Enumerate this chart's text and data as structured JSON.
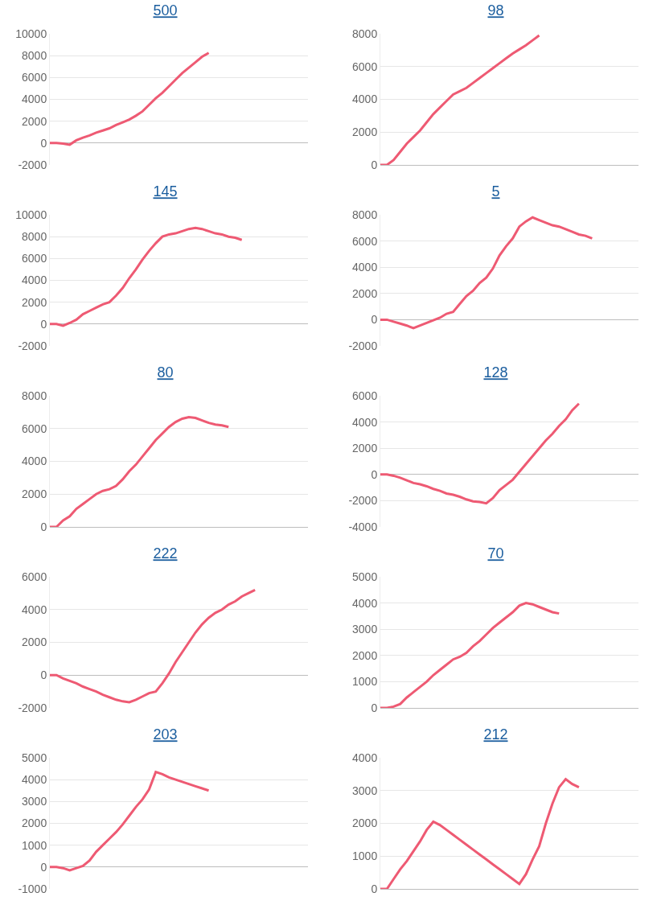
{
  "chart_data": [
    {
      "type": "line",
      "title": "500",
      "categories": [
        null,
        null,
        null,
        null,
        null,
        null,
        null,
        null,
        null,
        null,
        null,
        null,
        null,
        null,
        null,
        null,
        null,
        null,
        null,
        null,
        null,
        null,
        null,
        null,
        null,
        null,
        null,
        null,
        null,
        null,
        null,
        null,
        null,
        null,
        null,
        null,
        null,
        null,
        null,
        null
      ],
      "series": [
        {
          "color": "#ee5a73",
          "values": [
            0,
            0,
            -50,
            -150,
            250,
            500,
            700,
            950,
            1150,
            1350,
            1650,
            1900,
            2150,
            2500,
            2900,
            3500,
            4100,
            4600,
            5200,
            5800,
            6400,
            6900,
            7400,
            7900,
            8250,
            null,
            null,
            null,
            null,
            null,
            null,
            null,
            null,
            null,
            null,
            null,
            null,
            null,
            null,
            null
          ]
        }
      ],
      "ylim": [
        -2000,
        10000
      ],
      "yticks": [
        -2000,
        0,
        2000,
        4000,
        6000,
        8000,
        10000
      ],
      "grid": "y",
      "marker": "none",
      "line_style": "solid",
      "tick_labels": "y"
    },
    {
      "type": "line",
      "title": "98",
      "categories": [
        null,
        null,
        null,
        null,
        null,
        null,
        null,
        null,
        null,
        null,
        null,
        null,
        null,
        null,
        null,
        null,
        null,
        null,
        null,
        null,
        null,
        null,
        null,
        null,
        null,
        null,
        null,
        null,
        null,
        null,
        null,
        null,
        null,
        null,
        null,
        null,
        null,
        null,
        null,
        null
      ],
      "series": [
        {
          "color": "#ee5a73",
          "values": [
            0,
            0,
            300,
            800,
            1300,
            1700,
            2100,
            2600,
            3100,
            3500,
            3900,
            4300,
            4500,
            4700,
            5000,
            5300,
            5600,
            5900,
            6200,
            6500,
            6800,
            7050,
            7300,
            7600,
            7900,
            null,
            null,
            null,
            null,
            null,
            null,
            null,
            null,
            null,
            null,
            null,
            null,
            null,
            null,
            null
          ]
        }
      ],
      "ylim": [
        0,
        8000
      ],
      "yticks": [
        0,
        2000,
        4000,
        6000,
        8000
      ],
      "grid": "y",
      "marker": "none",
      "line_style": "solid",
      "tick_labels": "y"
    },
    {
      "type": "line",
      "title": "145",
      "categories": [
        null,
        null,
        null,
        null,
        null,
        null,
        null,
        null,
        null,
        null,
        null,
        null,
        null,
        null,
        null,
        null,
        null,
        null,
        null,
        null,
        null,
        null,
        null,
        null,
        null,
        null,
        null,
        null,
        null,
        null,
        null,
        null,
        null,
        null,
        null,
        null,
        null,
        null,
        null,
        null
      ],
      "series": [
        {
          "color": "#ee5a73",
          "values": [
            0,
            0,
            -150,
            100,
            400,
            900,
            1200,
            1500,
            1800,
            2000,
            2600,
            3300,
            4200,
            5000,
            5900,
            6700,
            7400,
            8000,
            8200,
            8300,
            8500,
            8700,
            8800,
            8700,
            8500,
            8300,
            8200,
            8000,
            7900,
            7700,
            null,
            null,
            null,
            null,
            null,
            null,
            null,
            null,
            null,
            null
          ]
        }
      ],
      "ylim": [
        -2000,
        10000
      ],
      "yticks": [
        -2000,
        0,
        2000,
        4000,
        6000,
        8000,
        10000
      ],
      "grid": "y",
      "marker": "none",
      "line_style": "solid",
      "tick_labels": "y"
    },
    {
      "type": "line",
      "title": "5",
      "categories": [
        null,
        null,
        null,
        null,
        null,
        null,
        null,
        null,
        null,
        null,
        null,
        null,
        null,
        null,
        null,
        null,
        null,
        null,
        null,
        null,
        null,
        null,
        null,
        null,
        null,
        null,
        null,
        null,
        null,
        null,
        null,
        null,
        null,
        null,
        null,
        null,
        null,
        null,
        null,
        null
      ],
      "series": [
        {
          "color": "#ee5a73",
          "values": [
            0,
            0,
            -150,
            -300,
            -450,
            -650,
            -450,
            -250,
            -50,
            150,
            450,
            600,
            1200,
            1800,
            2200,
            2800,
            3200,
            3900,
            4900,
            5600,
            6200,
            7100,
            7500,
            7800,
            7600,
            7400,
            7200,
            7100,
            6900,
            6700,
            6500,
            6400,
            6200,
            null,
            null,
            null,
            null,
            null,
            null,
            null
          ]
        }
      ],
      "ylim": [
        -2000,
        8000
      ],
      "yticks": [
        -2000,
        0,
        2000,
        4000,
        6000,
        8000
      ],
      "grid": "y",
      "marker": "none",
      "line_style": "solid",
      "tick_labels": "y"
    },
    {
      "type": "line",
      "title": "80",
      "categories": [
        null,
        null,
        null,
        null,
        null,
        null,
        null,
        null,
        null,
        null,
        null,
        null,
        null,
        null,
        null,
        null,
        null,
        null,
        null,
        null,
        null,
        null,
        null,
        null,
        null,
        null,
        null,
        null,
        null,
        null,
        null,
        null,
        null,
        null,
        null,
        null,
        null,
        null,
        null,
        null
      ],
      "series": [
        {
          "color": "#ee5a73",
          "values": [
            0,
            0,
            400,
            650,
            1100,
            1400,
            1700,
            2000,
            2200,
            2300,
            2500,
            2900,
            3400,
            3800,
            4300,
            4800,
            5300,
            5700,
            6100,
            6400,
            6600,
            6700,
            6650,
            6500,
            6350,
            6250,
            6200,
            6100,
            null,
            null,
            null,
            null,
            null,
            null,
            null,
            null,
            null,
            null,
            null,
            null
          ]
        }
      ],
      "ylim": [
        0,
        8000
      ],
      "yticks": [
        0,
        2000,
        4000,
        6000,
        8000
      ],
      "grid": "y",
      "marker": "none",
      "line_style": "solid",
      "tick_labels": "y"
    },
    {
      "type": "line",
      "title": "128",
      "categories": [
        null,
        null,
        null,
        null,
        null,
        null,
        null,
        null,
        null,
        null,
        null,
        null,
        null,
        null,
        null,
        null,
        null,
        null,
        null,
        null,
        null,
        null,
        null,
        null,
        null,
        null,
        null,
        null,
        null,
        null,
        null,
        null,
        null,
        null,
        null,
        null,
        null,
        null,
        null,
        null
      ],
      "series": [
        {
          "color": "#ee5a73",
          "values": [
            0,
            0,
            -100,
            -250,
            -450,
            -650,
            -750,
            -900,
            -1100,
            -1250,
            -1450,
            -1550,
            -1700,
            -1900,
            -2050,
            -2100,
            -2200,
            -1800,
            -1200,
            -800,
            -400,
            200,
            800,
            1400,
            2000,
            2600,
            3100,
            3700,
            4200,
            4900,
            5400,
            null,
            null,
            null,
            null,
            null,
            null,
            null,
            null,
            null
          ]
        }
      ],
      "ylim": [
        -4000,
        6000
      ],
      "yticks": [
        -4000,
        -2000,
        0,
        2000,
        4000,
        6000
      ],
      "grid": "y",
      "marker": "none",
      "line_style": "solid",
      "tick_labels": "y"
    },
    {
      "type": "line",
      "title": "222",
      "categories": [
        null,
        null,
        null,
        null,
        null,
        null,
        null,
        null,
        null,
        null,
        null,
        null,
        null,
        null,
        null,
        null,
        null,
        null,
        null,
        null,
        null,
        null,
        null,
        null,
        null,
        null,
        null,
        null,
        null,
        null,
        null,
        null,
        null,
        null,
        null,
        null,
        null,
        null,
        null,
        null
      ],
      "series": [
        {
          "color": "#ee5a73",
          "values": [
            0,
            0,
            -200,
            -350,
            -500,
            -700,
            -850,
            -1000,
            -1200,
            -1350,
            -1500,
            -1600,
            -1650,
            -1500,
            -1300,
            -1100,
            -1000,
            -500,
            100,
            800,
            1400,
            2000,
            2600,
            3100,
            3500,
            3800,
            4000,
            4300,
            4500,
            4800,
            5000,
            5200,
            null,
            null,
            null,
            null,
            null,
            null,
            null,
            null
          ]
        }
      ],
      "ylim": [
        -2000,
        6000
      ],
      "yticks": [
        -2000,
        0,
        2000,
        4000,
        6000
      ],
      "grid": "y",
      "marker": "none",
      "line_style": "solid",
      "tick_labels": "y"
    },
    {
      "type": "line",
      "title": "70",
      "categories": [
        null,
        null,
        null,
        null,
        null,
        null,
        null,
        null,
        null,
        null,
        null,
        null,
        null,
        null,
        null,
        null,
        null,
        null,
        null,
        null,
        null,
        null,
        null,
        null,
        null,
        null,
        null,
        null,
        null,
        null,
        null,
        null,
        null,
        null,
        null,
        null,
        null,
        null,
        null,
        null
      ],
      "series": [
        {
          "color": "#ee5a73",
          "values": [
            0,
            0,
            50,
            150,
            400,
            600,
            800,
            1000,
            1250,
            1450,
            1650,
            1850,
            1950,
            2100,
            2350,
            2550,
            2800,
            3050,
            3250,
            3450,
            3650,
            3900,
            4000,
            3950,
            3850,
            3750,
            3650,
            3600,
            null,
            null,
            null,
            null,
            null,
            null,
            null,
            null,
            null,
            null,
            null,
            null
          ]
        }
      ],
      "ylim": [
        0,
        5000
      ],
      "yticks": [
        0,
        1000,
        2000,
        3000,
        4000,
        5000
      ],
      "grid": "y",
      "marker": "none",
      "line_style": "solid",
      "tick_labels": "y"
    },
    {
      "type": "line",
      "title": "203",
      "categories": [
        null,
        null,
        null,
        null,
        null,
        null,
        null,
        null,
        null,
        null,
        null,
        null,
        null,
        null,
        null,
        null,
        null,
        null,
        null,
        null,
        null,
        null,
        null,
        null,
        null,
        null,
        null,
        null,
        null,
        null,
        null,
        null,
        null,
        null,
        null,
        null,
        null,
        null,
        null,
        null
      ],
      "series": [
        {
          "color": "#ee5a73",
          "values": [
            0,
            0,
            -50,
            -150,
            -50,
            50,
            300,
            700,
            1000,
            1300,
            1600,
            1950,
            2350,
            2750,
            3100,
            3550,
            4350,
            4250,
            4100,
            4000,
            3900,
            3800,
            3700,
            3600,
            3500,
            null,
            null,
            null,
            null,
            null,
            null,
            null,
            null,
            null,
            null,
            null,
            null,
            null,
            null,
            null
          ]
        }
      ],
      "ylim": [
        -1000,
        5000
      ],
      "yticks": [
        -1000,
        0,
        1000,
        2000,
        3000,
        4000,
        5000
      ],
      "grid": "y",
      "marker": "none",
      "line_style": "solid",
      "tick_labels": "y"
    },
    {
      "type": "line",
      "title": "212",
      "categories": [
        null,
        null,
        null,
        null,
        null,
        null,
        null,
        null,
        null,
        null,
        null,
        null,
        null,
        null,
        null,
        null,
        null,
        null,
        null,
        null,
        null,
        null,
        null,
        null,
        null,
        null,
        null,
        null,
        null,
        null,
        null,
        null,
        null,
        null,
        null,
        null,
        null,
        null,
        null,
        null
      ],
      "series": [
        {
          "color": "#ee5a73",
          "values": [
            0,
            0,
            300,
            600,
            850,
            1150,
            1450,
            1800,
            2050,
            1950,
            1800,
            1650,
            1500,
            1350,
            1200,
            1050,
            900,
            750,
            600,
            450,
            300,
            150,
            450,
            900,
            1300,
            2000,
            2600,
            3100,
            3350,
            3200,
            3100,
            null,
            null,
            null,
            null,
            null,
            null,
            null,
            null,
            null
          ]
        }
      ],
      "ylim": [
        0,
        4000
      ],
      "yticks": [
        0,
        1000,
        2000,
        3000,
        4000
      ],
      "grid": "y",
      "marker": "none",
      "line_style": "solid",
      "tick_labels": "y"
    }
  ]
}
